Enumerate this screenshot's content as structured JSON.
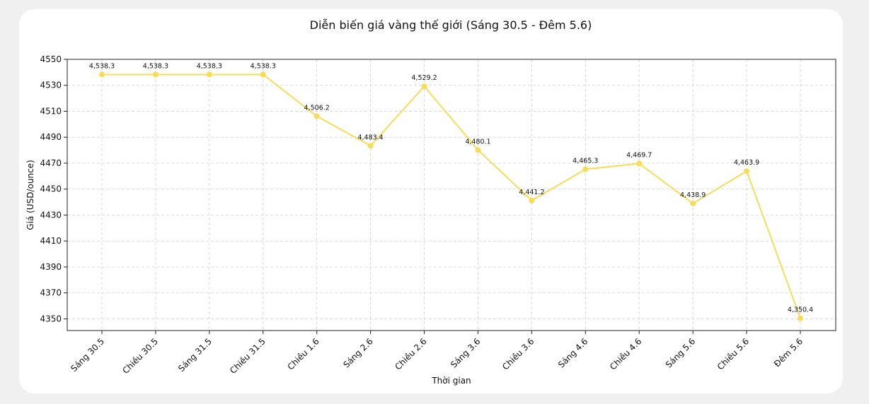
{
  "chart_data": {
    "type": "line",
    "title": "Diễn biến giá vàng thế giới (Sáng 30.5 - Đêm 5.6)",
    "xlabel": "Thời gian",
    "ylabel": "Giá (USD/ounce)",
    "categories": [
      "Sáng 30.5",
      "Chiều 30.5",
      "Sáng 31.5",
      "Chiều 31.5",
      "Chiều 1.6",
      "Sáng 2.6",
      "Chiều 2.6",
      "Sáng 3.6",
      "Chiều 3.6",
      "Sáng 4.6",
      "Chiều 4.6",
      "Sáng 5.6",
      "Chiều 5.6",
      "Đêm 5.6"
    ],
    "series": [
      {
        "values": [
          4538.3,
          4538.3,
          4538.3,
          4538.3,
          4506.2,
          4483.4,
          4529.2,
          4480.1,
          4441.2,
          4465.3,
          4469.7,
          4438.9,
          4463.9,
          4350.4
        ],
        "value_labels": [
          "4,538.3",
          "4,538.3",
          "4,538.3",
          "4,538.3",
          "4,506.2",
          "4,483.4",
          "4,529.2",
          "4,480.1",
          "4,441.2",
          "4,465.3",
          "4,469.7",
          "4,438.9",
          "4,463.9",
          "4,350.4"
        ]
      }
    ],
    "yticks": [
      4350,
      4370,
      4390,
      4410,
      4430,
      4450,
      4470,
      4490,
      4510,
      4530,
      4550
    ],
    "ylim": [
      4341,
      4550
    ],
    "grid": true,
    "line_color": "#f7dc5a"
  }
}
